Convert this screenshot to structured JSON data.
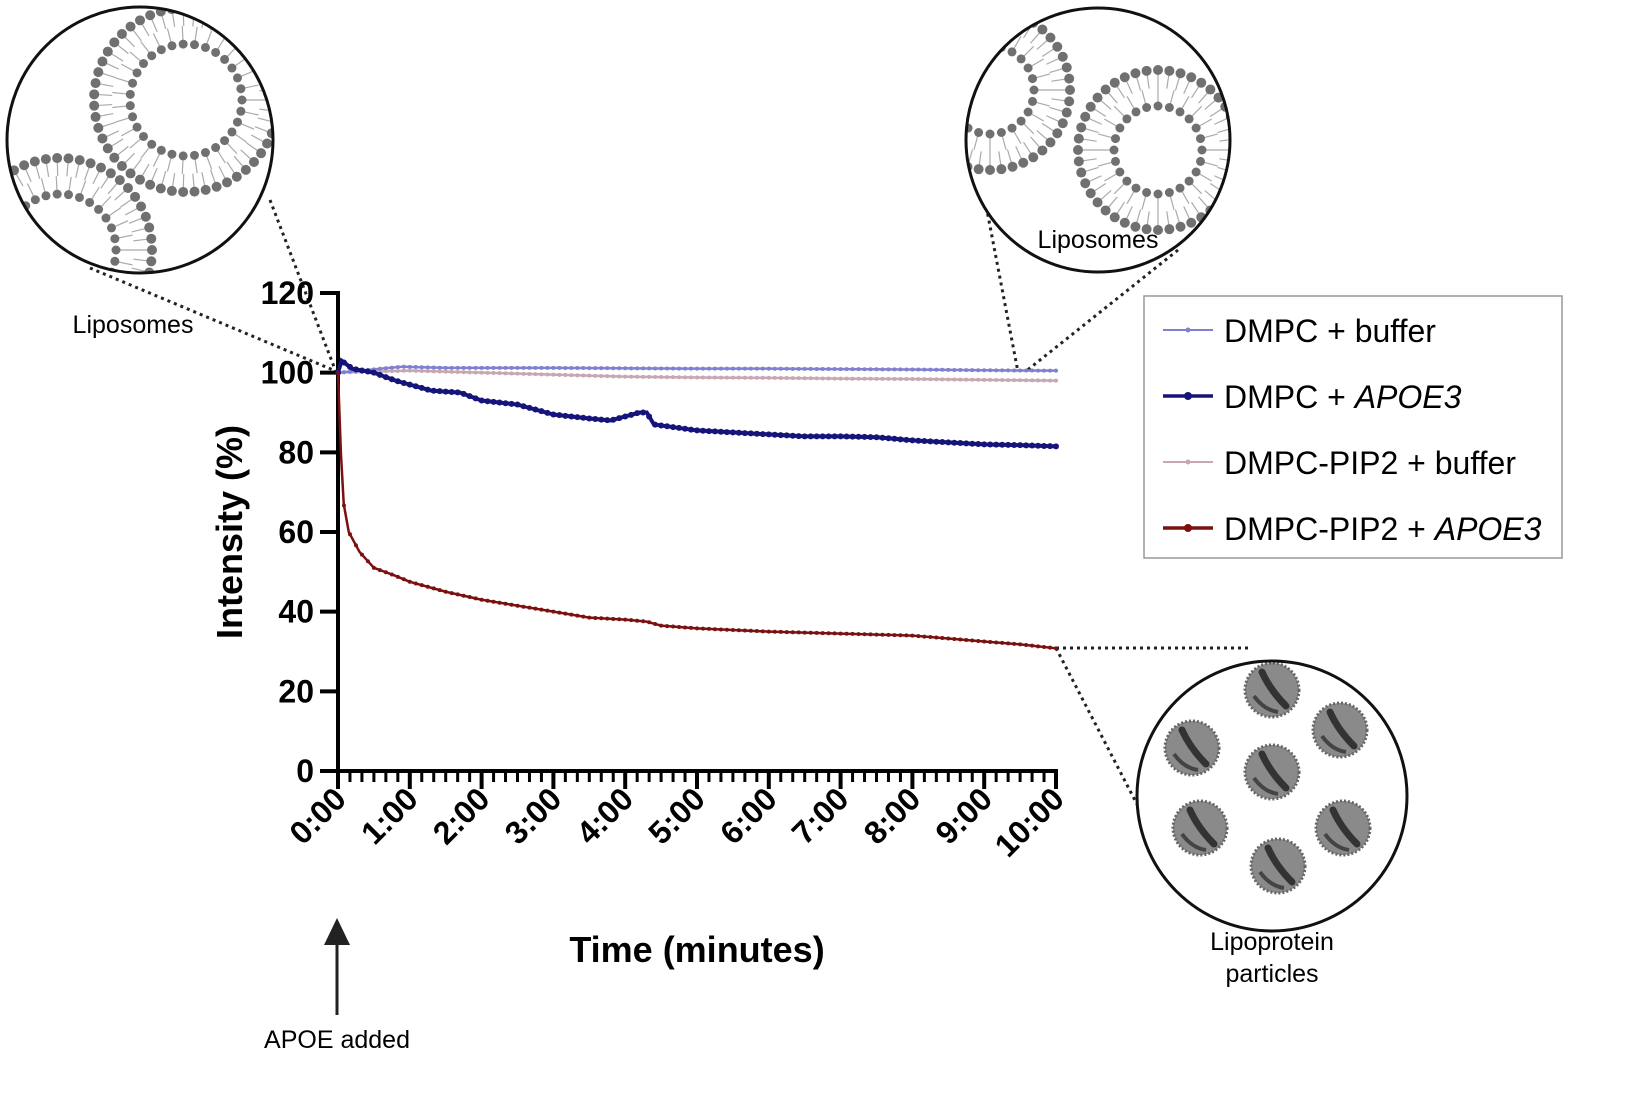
{
  "chart_data": {
    "type": "line",
    "xlabel": "Time (minutes)",
    "ylabel": "Intensity (%)",
    "xlim": [
      0,
      10
    ],
    "ylim": [
      0,
      120
    ],
    "x_ticks": [
      "0:00",
      "1:00",
      "2:00",
      "3:00",
      "4:00",
      "5:00",
      "6:00",
      "7:00",
      "8:00",
      "9:00",
      "10:00"
    ],
    "y_ticks": [
      "0",
      "20",
      "40",
      "60",
      "80",
      "100",
      "120"
    ],
    "grid": false,
    "legend_position": "right",
    "series": [
      {
        "name": "DMPC + buffer",
        "name_plain": "DMPC + ",
        "name_italic": "",
        "name_tail": "buffer",
        "color": "#8080d0",
        "x": [
          0,
          0.3,
          0.6,
          0.9,
          1.5,
          2,
          3,
          4,
          5,
          6,
          7,
          8,
          9,
          10
        ],
        "y": [
          100,
          100.5,
          101,
          101.5,
          101.2,
          101.2,
          101.2,
          101.1,
          101,
          101,
          100.9,
          100.8,
          100.6,
          100.5
        ]
      },
      {
        "name": "DMPC + APOE3",
        "name_plain": "DMPC + ",
        "name_italic": "APOE3",
        "name_tail": "",
        "color": "#14147a",
        "x": [
          0,
          0.05,
          0.2,
          0.5,
          0.8,
          1,
          1.3,
          1.7,
          2,
          2.5,
          3,
          3.5,
          3.8,
          4,
          4.2,
          4.3,
          4.4,
          5,
          5.5,
          6,
          6.5,
          7,
          7.5,
          8,
          8.5,
          9,
          9.5,
          10
        ],
        "y": [
          100,
          103,
          101,
          100,
          98,
          97,
          95.5,
          95,
          93,
          92,
          89.5,
          88.5,
          88,
          89,
          90,
          90,
          87,
          85.5,
          85,
          84.5,
          84,
          84,
          83.8,
          83,
          82.5,
          82,
          81.8,
          81.5
        ]
      },
      {
        "name": "DMPC-PIP2 + buffer",
        "name_plain": "DMPC-PIP2 + ",
        "name_italic": "",
        "name_tail": "buffer",
        "color": "#c8a8b0",
        "x": [
          0,
          0.5,
          1,
          2,
          3,
          4,
          5,
          6,
          7,
          8,
          9,
          10
        ],
        "y": [
          100,
          100.3,
          100.5,
          100,
          99.5,
          99,
          98.8,
          98.7,
          98.5,
          98.4,
          98.2,
          98
        ]
      },
      {
        "name": "DMPC-PIP2 + APOE3",
        "name_plain": "DMPC-PIP2 + ",
        "name_italic": "APOE3",
        "name_tail": "",
        "color": "#7a1010",
        "x": [
          0,
          0.04,
          0.08,
          0.15,
          0.3,
          0.5,
          0.8,
          1,
          1.5,
          2,
          2.5,
          3,
          3.5,
          4,
          4.3,
          4.5,
          5,
          6,
          7,
          8,
          9,
          9.5,
          10
        ],
        "y": [
          100,
          80,
          67,
          60,
          55,
          51,
          49,
          47.5,
          45,
          43,
          41.5,
          40,
          38.5,
          38,
          37.5,
          36.5,
          35.8,
          35,
          34.5,
          34,
          32.5,
          31.8,
          30.8
        ]
      }
    ]
  },
  "annotations": {
    "liposomes_left": "Liposomes",
    "liposomes_right": "Liposomes",
    "lipoprotein_line1": "Lipoprotein",
    "lipoprotein_line2": "particles",
    "apoe_added": "APOE added"
  }
}
